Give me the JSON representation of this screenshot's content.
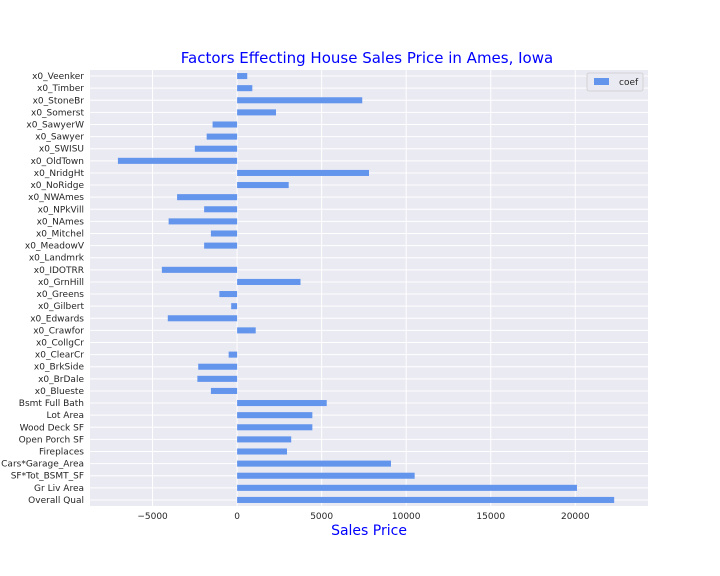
{
  "chart_data": {
    "type": "bar",
    "orientation": "horizontal",
    "title": "Factors Effecting House Sales Price in Ames, Iowa",
    "xlabel": "Sales Price",
    "ylabel": "",
    "xlim": [
      -8700,
      24300
    ],
    "xticks": [
      -5000,
      0,
      5000,
      10000,
      15000,
      20000
    ],
    "xtick_labels": [
      "−5000",
      "0",
      "5000",
      "10000",
      "15000",
      "20000"
    ],
    "grid": true,
    "legend_position": "top-right",
    "series": [
      {
        "name": "coef",
        "color": "#6495ed",
        "points": [
          {
            "label": "Overall Qual",
            "value": 22300
          },
          {
            "label": "Gr Liv Area",
            "value": 20100
          },
          {
            "label": "SF*Tot_BSMT_SF",
            "value": 10500
          },
          {
            "label": "Cars*Garage_Area",
            "value": 9100
          },
          {
            "label": "Fireplaces",
            "value": 2950
          },
          {
            "label": "Open Porch SF",
            "value": 3200
          },
          {
            "label": "Wood Deck SF",
            "value": 4450
          },
          {
            "label": "Lot Area",
            "value": 4450
          },
          {
            "label": "Bsmt Full Bath",
            "value": 5300
          },
          {
            "label": "x0_Blueste",
            "value": -1550
          },
          {
            "label": "x0_BrDale",
            "value": -2350
          },
          {
            "label": "x0_BrkSide",
            "value": -2300
          },
          {
            "label": "x0_ClearCr",
            "value": -500
          },
          {
            "label": "x0_CollgCr",
            "value": 0
          },
          {
            "label": "x0_Crawfor",
            "value": 1100
          },
          {
            "label": "x0_Edwards",
            "value": -4100
          },
          {
            "label": "x0_Gilbert",
            "value": -350
          },
          {
            "label": "x0_Greens",
            "value": -1050
          },
          {
            "label": "x0_GrnHill",
            "value": 3750
          },
          {
            "label": "x0_IDOTRR",
            "value": -4450
          },
          {
            "label": "x0_Landmrk",
            "value": 0
          },
          {
            "label": "x0_MeadowV",
            "value": -1950
          },
          {
            "label": "x0_Mitchel",
            "value": -1550
          },
          {
            "label": "x0_NAmes",
            "value": -4050
          },
          {
            "label": "x0_NPkVill",
            "value": -1950
          },
          {
            "label": "x0_NWAmes",
            "value": -3550
          },
          {
            "label": "x0_NoRidge",
            "value": 3050
          },
          {
            "label": "x0_NridgHt",
            "value": 7800
          },
          {
            "label": "x0_OldTown",
            "value": -7050
          },
          {
            "label": "x0_SWISU",
            "value": -2500
          },
          {
            "label": "x0_Sawyer",
            "value": -1800
          },
          {
            "label": "x0_SawyerW",
            "value": -1450
          },
          {
            "label": "x0_Somerst",
            "value": 2300
          },
          {
            "label": "x0_StoneBr",
            "value": 7400
          },
          {
            "label": "x0_Timber",
            "value": 900
          },
          {
            "label": "x0_Veenker",
            "value": 600
          }
        ]
      }
    ]
  },
  "colors": {
    "plot_background": "#eaeaf2",
    "grid": "#ffffff",
    "title": "#0000ff",
    "xlabel": "#0000ff",
    "bar": "#6495ed"
  }
}
